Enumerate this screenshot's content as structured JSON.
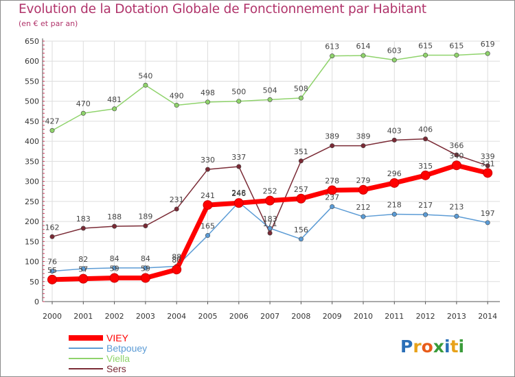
{
  "chart_data": {
    "type": "line",
    "title": "Evolution de la Dotation Globale de Fonctionnement par Habitant",
    "subtitle": "(en € et par an)",
    "ylim": [
      0,
      650
    ],
    "yticks": [
      0,
      50,
      100,
      150,
      200,
      250,
      300,
      350,
      400,
      450,
      500,
      550,
      600,
      650
    ],
    "x": [
      "2000",
      "2001",
      "2002",
      "2003",
      "2004",
      "2005",
      "2006",
      "2007",
      "2008",
      "2009",
      "2010",
      "2011",
      "2012",
      "2013",
      "2014"
    ],
    "grid": true,
    "legend_position": "bottom-left",
    "series": [
      {
        "name": "Viella",
        "color": "#8fd36b",
        "values": [
          427,
          470,
          481,
          540,
          490,
          498,
          500,
          504,
          508,
          613,
          614,
          603,
          615,
          615,
          619
        ]
      },
      {
        "name": "Sers",
        "color": "#7a2a35",
        "values": [
          162,
          183,
          188,
          189,
          231,
          330,
          337,
          171,
          351,
          389,
          389,
          403,
          406,
          366,
          339
        ]
      },
      {
        "name": "Betpouey",
        "color": "#5b9bd5",
        "values": [
          76,
          82,
          84,
          84,
          88,
          165,
          248,
          183,
          156,
          237,
          212,
          218,
          217,
          213,
          197
        ]
      },
      {
        "name": "VIEY",
        "color": "#ff0000",
        "values": [
          55,
          57,
          59,
          59,
          80,
          241,
          246,
          252,
          257,
          278,
          279,
          296,
          315,
          340,
          321
        ]
      }
    ]
  },
  "legend_order": [
    "VIEY",
    "Betpouey",
    "Viella",
    "Sers"
  ],
  "brand": {
    "logo_text": "Proxiti"
  }
}
